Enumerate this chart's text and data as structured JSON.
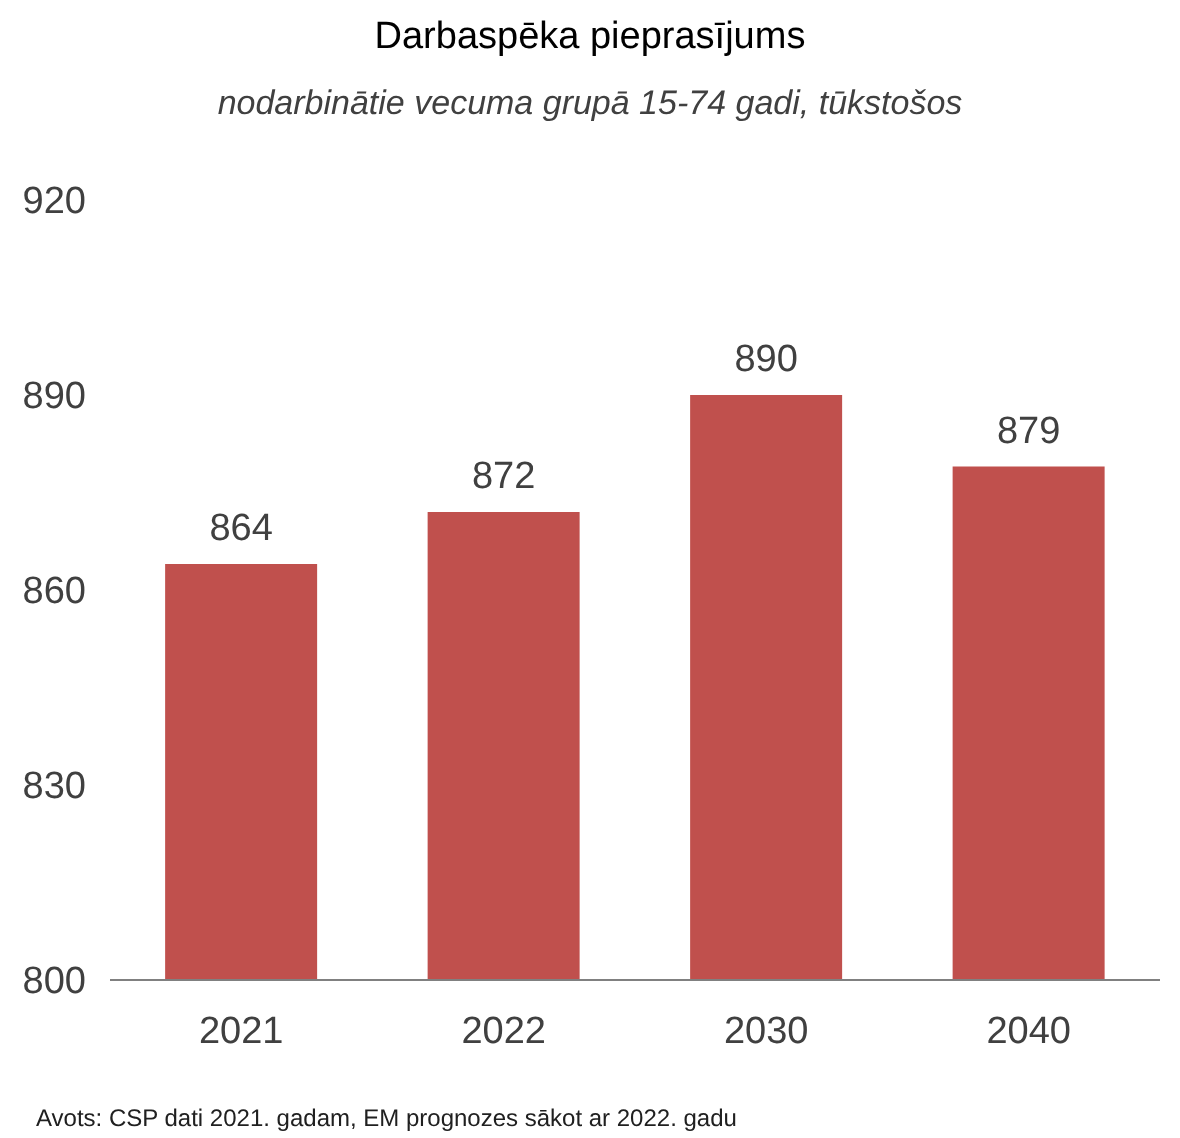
{
  "chart_data": {
    "type": "bar",
    "title": "Darbaspēka pieprasījums",
    "subtitle": "nodarbinātie vecuma grupā 15-74 gadi, tūkstošos",
    "categories": [
      "2021",
      "2022",
      "2030",
      "2040"
    ],
    "values": [
      864,
      872,
      890,
      879
    ],
    "color": "#c0504d",
    "ylim": [
      800,
      920
    ],
    "yticks": [
      800,
      830,
      860,
      890,
      920
    ],
    "grid": false,
    "data_labels": true,
    "annotations": [
      "Avots: CSP dati 2021. gadam, EM prognozes sākot ar 2022. gadu"
    ]
  }
}
